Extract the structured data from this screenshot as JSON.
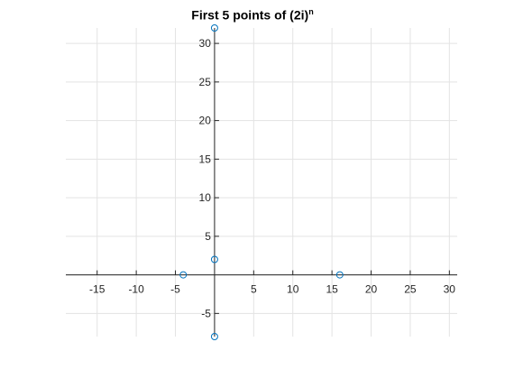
{
  "chart_data": {
    "type": "scatter",
    "title": {
      "base": "First 5 points of (2i)",
      "superscript": "n"
    },
    "xlabel": "",
    "ylabel": "",
    "xlim": [
      -19,
      31
    ],
    "ylim": [
      -8,
      32
    ],
    "xticks": [
      -15,
      -10,
      -5,
      5,
      10,
      15,
      20,
      25,
      30
    ],
    "yticks": [
      -5,
      5,
      10,
      15,
      20,
      25,
      30
    ],
    "grid": true,
    "axes_through_origin": true,
    "marker": "circle",
    "marker_color": "#0072bd",
    "series": [
      {
        "x": [
          0,
          -4,
          0,
          16,
          0
        ],
        "y": [
          2,
          0,
          -8,
          0,
          32
        ]
      }
    ]
  }
}
